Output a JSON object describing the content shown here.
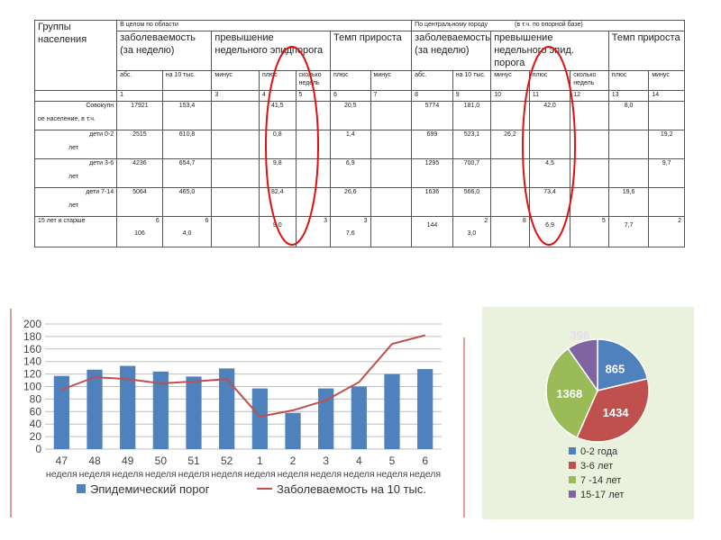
{
  "table": {
    "group_header": "Группы населения",
    "region_header": "В целом по области",
    "city_header": "По центральному городу",
    "city_note": "(в т.ч. по опорной базе)",
    "metrics": [
      "заболеваемость (за неделю)",
      "превышение недельного эпидпорога",
      "Темп прироста",
      "заболеваемость (за неделю)",
      "превышение недельного эпид. порога",
      "Темп прироста"
    ],
    "sub_cols": [
      "абс.",
      "на 10 тыс.",
      "минус",
      "плюс",
      "сколько недель",
      "плюс",
      "минус",
      "абс.",
      "на 10 тыс.",
      "минус",
      "плюс",
      "сколько недель",
      "плюс",
      "минус"
    ],
    "col_numbers": [
      "1",
      "",
      "3",
      "4",
      "5",
      "6",
      "7",
      "8",
      "9",
      "10",
      "11",
      "12",
      "13",
      "14"
    ],
    "rows": [
      {
        "label_a": "Совокупн",
        "label_b": "ое население, в т.ч.",
        "cells": [
          "17921",
          "153,4",
          "",
          "41,5",
          "",
          "20,5",
          "",
          "5774",
          "181,0",
          "",
          "42,0",
          "",
          "8,0",
          ""
        ]
      },
      {
        "label_a": "дети 0-2",
        "label_b": "лет",
        "cells": [
          "2515",
          "610,8",
          "",
          "0,8",
          "",
          "1,4",
          "",
          "699",
          "523,1",
          "26,2",
          "",
          "",
          "",
          "19,2"
        ]
      },
      {
        "label_a": "дети 3-6",
        "label_b": "лет",
        "cells": [
          "4236",
          "654,7",
          "",
          "9,8",
          "",
          "6,9",
          "",
          "1295",
          "700,7",
          "",
          "4,5",
          "",
          "",
          "9,7"
        ]
      },
      {
        "label_a": "дети 7-14",
        "label_b": "лет",
        "cells": [
          "5064",
          "465,0",
          "",
          "82,4",
          "",
          "26,6",
          "",
          "1636",
          "566,0",
          "",
          "73,4",
          "",
          "19,6",
          ""
        ]
      }
    ],
    "last_row": {
      "label": "15 лет и старше",
      "top": [
        "6",
        "6",
        "",
        "",
        "3",
        "3",
        "",
        "",
        "2",
        "8",
        "",
        "5",
        "",
        "2"
      ],
      "bottom": [
        "106",
        "4,0",
        "",
        "9,0",
        "",
        "7,6",
        "",
        "144",
        "3,0",
        "",
        "6,9",
        "",
        "7,7",
        ""
      ]
    }
  },
  "chart_data": [
    {
      "type": "bar",
      "categories": [
        "47",
        "48",
        "49",
        "50",
        "51",
        "52",
        "1",
        "2",
        "3",
        "4",
        "5",
        "6"
      ],
      "category_sublabel": "неделя",
      "series": [
        {
          "name": "Эпидемический порог",
          "type": "bar",
          "color": "#4f81bd",
          "values": [
            117,
            127,
            133,
            124,
            116,
            129,
            97,
            58,
            97,
            100,
            120,
            128
          ]
        },
        {
          "name": "Заболеваемость на 10 тыс.",
          "type": "line",
          "color": "#c0504d",
          "values": [
            95,
            115,
            112,
            105,
            108,
            112,
            52,
            62,
            78,
            107,
            168,
            182
          ]
        }
      ],
      "ylim": [
        0,
        200
      ],
      "yticks": [
        "0",
        "20",
        "40",
        "60",
        "80",
        "100",
        "120",
        "140",
        "160",
        "180",
        "200"
      ],
      "grid": true,
      "legend": "bottom"
    },
    {
      "type": "pie",
      "labels": [
        "0-2 года",
        "3-6 лет",
        "7 -14 лет",
        "15-17 лет"
      ],
      "values": [
        865,
        1434,
        1368,
        396
      ],
      "value_labels": [
        "865",
        "1434",
        "1368",
        "396"
      ],
      "colors": [
        "#4f81bd",
        "#c0504d",
        "#9bbb59",
        "#8064a2"
      ],
      "legend": "bottom",
      "background": "#eaf1dd"
    }
  ]
}
